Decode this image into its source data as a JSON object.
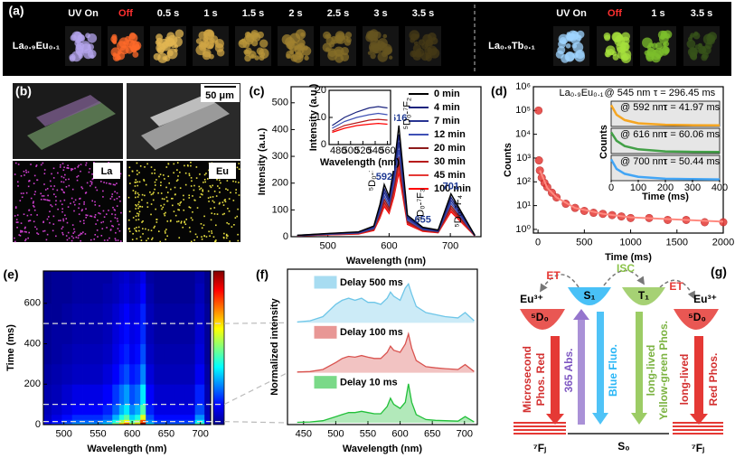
{
  "panel_a": {
    "label": "(a)",
    "eu": {
      "name": "La₀.₉Eu₀.₁",
      "frames": [
        "UV On",
        "Off",
        "0.5 s",
        "1 s",
        "1.5 s",
        "2 s",
        "2.5 s",
        "3 s",
        "3.5 s"
      ]
    },
    "tb": {
      "name": "La₀.₉Tb₀.₁",
      "frames": [
        "UV On",
        "Off",
        "1 s",
        "3.5 s"
      ]
    }
  },
  "panel_b": {
    "label": "(b)",
    "scale_bar": "50 μm",
    "maps": [
      "La",
      "Eu"
    ]
  },
  "chart_data": [
    {
      "type": "line",
      "panel_label": "(c)",
      "xlabel": "Wavelength (nm)",
      "ylabel": "Intensity (a.u.)",
      "xlim": [
        440,
        750
      ],
      "ylim": [
        0,
        560
      ],
      "xticks": [
        500,
        600,
        700
      ],
      "yticks": [
        0,
        100,
        200,
        300,
        400,
        500
      ],
      "x": [
        450,
        500,
        550,
        575,
        585,
        592,
        600,
        608,
        616,
        630,
        655,
        680,
        701,
        740
      ],
      "series": [
        {
          "name": "0 min",
          "color": "#000000",
          "values": [
            5,
            12,
            18,
            40,
            120,
            195,
            150,
            260,
            415,
            80,
            35,
            25,
            160,
            5
          ]
        },
        {
          "name": "4 min",
          "color": "#1a237e",
          "values": [
            5,
            11,
            17,
            37,
            110,
            179,
            138,
            239,
            382,
            74,
            32,
            23,
            147,
            5
          ]
        },
        {
          "name": "7 min",
          "color": "#283593",
          "values": [
            4,
            10,
            15,
            34,
            102,
            166,
            128,
            221,
            353,
            68,
            30,
            21,
            136,
            4
          ]
        },
        {
          "name": "12 min",
          "color": "#3f51b5",
          "values": [
            4,
            9,
            14,
            31,
            94,
            152,
            117,
            203,
            324,
            62,
            27,
            20,
            125,
            4
          ]
        },
        {
          "name": "20 min",
          "color": "#8e1b1b",
          "values": [
            4,
            9,
            13,
            29,
            86,
            140,
            108,
            187,
            299,
            58,
            25,
            18,
            115,
            4
          ]
        },
        {
          "name": "30 min",
          "color": "#b71c1c",
          "values": [
            3,
            8,
            12,
            26,
            79,
            129,
            99,
            172,
            274,
            53,
            23,
            17,
            106,
            3
          ]
        },
        {
          "name": "45 min",
          "color": "#e53935",
          "values": [
            3,
            7,
            11,
            25,
            74,
            121,
            93,
            161,
            257,
            50,
            22,
            16,
            99,
            3
          ]
        },
        {
          "name": "100 min",
          "color": "#ff0000",
          "values": [
            3,
            7,
            10,
            23,
            70,
            113,
            87,
            151,
            241,
            46,
            20,
            15,
            93,
            3
          ]
        }
      ],
      "peak_labels": [
        {
          "value": 592,
          "label": "592"
        },
        {
          "value": 616,
          "label": "616"
        },
        {
          "value": 655,
          "label": "655"
        },
        {
          "value": 701,
          "label": "701"
        }
      ],
      "transitions": [
        "⁵D₀-⁷F₁",
        "⁵D₀-⁷F₂",
        "⁵D₀-⁷F₃",
        "⁵D₀-⁷F₄"
      ],
      "inset": {
        "xlabel": "Wavelength (nm)",
        "ylabel": "Intensity (a.u.)",
        "xlim": [
          465,
          565
        ],
        "ylim": [
          0,
          20
        ],
        "xticks": [
          480,
          500,
          520,
          540,
          560
        ],
        "yticks": [
          0,
          10,
          20
        ],
        "x": [
          470,
          490,
          510,
          530,
          545,
          560
        ],
        "series": [
          {
            "color": "#1a237e",
            "values": [
              7,
              10,
              12,
              13.5,
              14,
              13.5
            ]
          },
          {
            "color": "#3f51b5",
            "values": [
              6,
              8.5,
              10,
              11,
              11.5,
              11
            ]
          },
          {
            "color": "#b71c1c",
            "values": [
              5,
              7,
              8,
              9,
              9.3,
              9
            ]
          },
          {
            "color": "#ff0000",
            "values": [
              4.5,
              6,
              7,
              7.5,
              7.8,
              7.5
            ]
          }
        ]
      }
    },
    {
      "type": "scatter",
      "panel_label": "(d)",
      "xlabel": "Time (ms)",
      "ylabel": "Counts",
      "log_y": true,
      "xlim": [
        -50,
        2000
      ],
      "ylim": [
        0.7,
        1000000
      ],
      "xticks": [
        0,
        500,
        1000,
        1500,
        2000
      ],
      "yticks": [
        {
          "value": 1,
          "label": "10⁰"
        },
        {
          "value": 10,
          "label": "10¹"
        },
        {
          "value": 100,
          "label": "10²"
        },
        {
          "value": 1000,
          "label": "10³"
        },
        {
          "value": 10000,
          "label": "10⁴"
        },
        {
          "value": 100000,
          "label": "10⁵"
        },
        {
          "value": 1000000,
          "label": "10⁶"
        }
      ],
      "color": "#e53935",
      "x": [
        5,
        10,
        20,
        40,
        70,
        100,
        150,
        200,
        300,
        400,
        500,
        600,
        700,
        800,
        900,
        1000,
        1200,
        1400,
        1600,
        1800,
        2000
      ],
      "values": [
        100000,
        800,
        300,
        150,
        90,
        60,
        35,
        22,
        12,
        8,
        6,
        5,
        4.5,
        4,
        3.5,
        3,
        3,
        2.5,
        2.5,
        2,
        2
      ],
      "fit": {
        "color": "#ff8a80",
        "x": [
          20,
          100,
          200,
          400,
          700,
          1000,
          1500,
          2000
        ],
        "values": [
          300,
          55,
          22,
          8,
          4.5,
          3.2,
          2.6,
          2.1
        ]
      },
      "annotation": {
        "sample": "La₀.₉Eu₀.₁",
        "at": "@ 545 nm",
        "tau": "τ = 296.45 ms"
      },
      "inset": {
        "xlabel": "Time (ms)",
        "ylabel": "Counts",
        "xlim": [
          0,
          400
        ],
        "ylim": [
          0,
          1.1
        ],
        "xticks": [
          0,
          100,
          200,
          300,
          400
        ],
        "x": [
          0,
          20,
          50,
          100,
          200,
          300,
          400
        ],
        "panels": [
          {
            "at": "@ 592 nm",
            "tau": "τ = 41.97 ms",
            "color": "#f5a623",
            "values": [
              1,
              0.55,
              0.3,
              0.15,
              0.08,
              0.06,
              0.05
            ]
          },
          {
            "at": "@ 616 nm",
            "tau": "τ = 60.06 ms",
            "color": "#43a047",
            "values": [
              1,
              0.6,
              0.35,
              0.2,
              0.1,
              0.08,
              0.07
            ]
          },
          {
            "at": "@ 700 nm",
            "tau": "τ = 50.44 ms",
            "color": "#42a5f5",
            "values": [
              1,
              0.55,
              0.32,
              0.18,
              0.09,
              0.07,
              0.06
            ]
          }
        ]
      }
    },
    {
      "type": "heatmap",
      "panel_label": "(e)",
      "xlabel": "Wavelength (nm)",
      "ylabel": "Time (ms)",
      "xlim": [
        470,
        715
      ],
      "ylim": [
        0,
        760
      ],
      "xticks": [
        500,
        550,
        600,
        650,
        700
      ],
      "yticks": [
        0,
        200,
        400,
        600
      ],
      "zlim": [
        0,
        0.9
      ],
      "marked_times": [
        500,
        100,
        15
      ],
      "x_edges": [
        470,
        482,
        497,
        512,
        527,
        542,
        557,
        571,
        581,
        588,
        596,
        604,
        612,
        620,
        632,
        647,
        662,
        677,
        692,
        706,
        715
      ],
      "y_edges": [
        0,
        10,
        25,
        50,
        100,
        200,
        300,
        400,
        500,
        600,
        700,
        760
      ],
      "z": [
        [
          0.1,
          0.15,
          0.2,
          0.25,
          0.25,
          0.25,
          0.3,
          0.45,
          0.6,
          0.7,
          0.5,
          0.6,
          0.9,
          0.3,
          0.2,
          0.2,
          0.2,
          0.2,
          0.4,
          0.1
        ],
        [
          0.08,
          0.12,
          0.16,
          0.2,
          0.2,
          0.2,
          0.24,
          0.36,
          0.48,
          0.56,
          0.4,
          0.48,
          0.72,
          0.24,
          0.16,
          0.16,
          0.16,
          0.16,
          0.32,
          0.08
        ],
        [
          0.06,
          0.09,
          0.12,
          0.15,
          0.15,
          0.15,
          0.18,
          0.27,
          0.36,
          0.42,
          0.3,
          0.36,
          0.54,
          0.18,
          0.12,
          0.12,
          0.12,
          0.12,
          0.24,
          0.06
        ],
        [
          0.05,
          0.07,
          0.09,
          0.11,
          0.11,
          0.11,
          0.14,
          0.2,
          0.27,
          0.32,
          0.23,
          0.27,
          0.41,
          0.14,
          0.09,
          0.09,
          0.09,
          0.09,
          0.18,
          0.05
        ],
        [
          0.04,
          0.05,
          0.07,
          0.09,
          0.09,
          0.09,
          0.11,
          0.16,
          0.21,
          0.25,
          0.18,
          0.21,
          0.32,
          0.11,
          0.07,
          0.07,
          0.07,
          0.07,
          0.14,
          0.04
        ],
        [
          0.03,
          0.04,
          0.05,
          0.06,
          0.06,
          0.06,
          0.08,
          0.11,
          0.15,
          0.18,
          0.13,
          0.15,
          0.23,
          0.08,
          0.05,
          0.05,
          0.05,
          0.05,
          0.1,
          0.03
        ],
        [
          0.02,
          0.03,
          0.04,
          0.05,
          0.05,
          0.05,
          0.06,
          0.09,
          0.12,
          0.14,
          0.1,
          0.12,
          0.18,
          0.06,
          0.04,
          0.04,
          0.04,
          0.04,
          0.08,
          0.02
        ],
        [
          0.02,
          0.03,
          0.03,
          0.04,
          0.04,
          0.04,
          0.05,
          0.08,
          0.1,
          0.12,
          0.09,
          0.1,
          0.15,
          0.05,
          0.03,
          0.03,
          0.03,
          0.03,
          0.07,
          0.02
        ],
        [
          0.02,
          0.02,
          0.03,
          0.04,
          0.04,
          0.04,
          0.05,
          0.07,
          0.09,
          0.11,
          0.08,
          0.09,
          0.14,
          0.05,
          0.03,
          0.03,
          0.03,
          0.03,
          0.06,
          0.02
        ],
        [
          0.01,
          0.02,
          0.02,
          0.03,
          0.03,
          0.03,
          0.04,
          0.05,
          0.07,
          0.08,
          0.06,
          0.07,
          0.11,
          0.04,
          0.02,
          0.02,
          0.02,
          0.02,
          0.05,
          0.01
        ],
        [
          0.01,
          0.02,
          0.02,
          0.03,
          0.03,
          0.03,
          0.03,
          0.05,
          0.06,
          0.07,
          0.05,
          0.06,
          0.09,
          0.03,
          0.02,
          0.02,
          0.02,
          0.02,
          0.04,
          0.01
        ]
      ]
    },
    {
      "type": "line",
      "panel_label": "(f)",
      "xlabel": "Wavelength (nm)",
      "ylabel": "Normalized intensity",
      "xlim": [
        425,
        720
      ],
      "ylim": [
        0,
        1
      ],
      "xticks": [
        450,
        500,
        550,
        600,
        650,
        700
      ],
      "stacked_panels": true,
      "x": [
        440,
        460,
        480,
        500,
        510,
        520,
        530,
        540,
        550,
        560,
        570,
        580,
        585,
        590,
        600,
        608,
        613,
        618,
        625,
        640,
        655,
        670,
        690,
        701,
        715
      ],
      "series": [
        {
          "name": "Delay 500 ms",
          "color": "#6ec6e8",
          "values": [
            0.02,
            0.05,
            0.15,
            0.45,
            0.55,
            0.6,
            0.55,
            0.6,
            0.5,
            0.5,
            0.45,
            0.6,
            0.75,
            0.65,
            0.55,
            0.85,
            0.95,
            0.7,
            0.4,
            0.25,
            0.2,
            0.15,
            0.12,
            0.25,
            0.05
          ]
        },
        {
          "name": "Delay 100 ms",
          "color": "#d9534f",
          "values": [
            0.02,
            0.03,
            0.08,
            0.25,
            0.35,
            0.4,
            0.38,
            0.42,
            0.38,
            0.35,
            0.35,
            0.5,
            0.65,
            0.55,
            0.5,
            0.7,
            0.95,
            0.6,
            0.3,
            0.15,
            0.12,
            0.1,
            0.08,
            0.2,
            0.03
          ]
        },
        {
          "name": "Delay 10 ms",
          "color": "#22c03a",
          "values": [
            0.01,
            0.02,
            0.05,
            0.15,
            0.2,
            0.25,
            0.25,
            0.28,
            0.25,
            0.22,
            0.22,
            0.4,
            0.6,
            0.45,
            0.35,
            0.5,
            0.95,
            0.5,
            0.2,
            0.08,
            0.06,
            0.05,
            0.04,
            0.15,
            0.02
          ]
        }
      ]
    }
  ],
  "panel_g": {
    "label": "(g)",
    "et_left": "ET",
    "isc": "ISC",
    "et_right": "ET",
    "eu_left": "Eu³⁺",
    "d0_left": "⁵D₀",
    "s1": "S₁",
    "t1": "T₁",
    "eu_right": "Eu³⁺",
    "d0_right": "⁵D₀",
    "microsecond": "Microsecond",
    "phos_red": "Phos. Red",
    "abs": "365 Abs.",
    "fluo": "Blue Fluo.",
    "ll_green": "long-lived",
    "yg_phos": "Yellow-green Phos.",
    "ll_red": "long-lived",
    "red_phos": "Red Phos.",
    "fj_left": "⁷Fⱼ",
    "s0": "S₀",
    "fj_right": "⁷Fⱼ"
  }
}
